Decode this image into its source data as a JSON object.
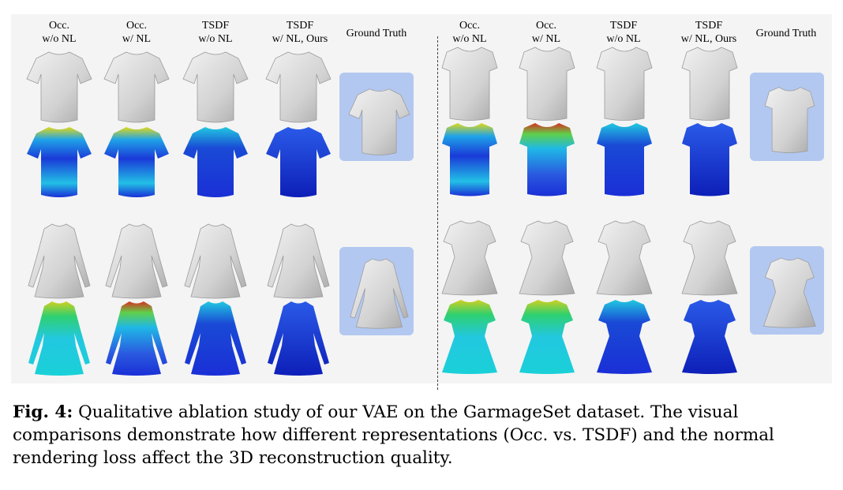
{
  "figure": {
    "left_panel": {
      "headers": [
        [
          "Occ.",
          "w/o NL"
        ],
        [
          "Occ.",
          "w/ NL"
        ],
        [
          "TSDF",
          "w/o NL"
        ],
        [
          "TSDF",
          "w/ NL, Ours"
        ],
        [
          "Ground Truth"
        ]
      ],
      "rows": [
        "short-sleeve-shirt",
        "long-sleeve-dress"
      ]
    },
    "right_panel": {
      "headers": [
        [
          "Occ.",
          "w/o NL"
        ],
        [
          "Occ.",
          "w/ NL"
        ],
        [
          "TSDF",
          "w/o NL"
        ],
        [
          "TSDF",
          "w/ NL, Ours"
        ],
        [
          "Ground Truth"
        ]
      ],
      "rows": [
        "cap-sleeve-top",
        "short-sleeve-dress"
      ]
    },
    "colors": {
      "mesh": "#d9d9d9",
      "gt_background": "#b3c8f0",
      "error_low": "#1a2fd6",
      "error_mid": "#21c8e0",
      "error_high": "#e5e01a",
      "error_max": "#c81e1e"
    }
  },
  "caption": {
    "label": "Fig. 4:",
    "text": " Qualitative ablation study of our VAE on the GarmageSet dataset. The visual comparisons demonstrate how different representations (Occ. vs. TSDF) and the normal rendering loss affect the 3D reconstruction quality."
  }
}
